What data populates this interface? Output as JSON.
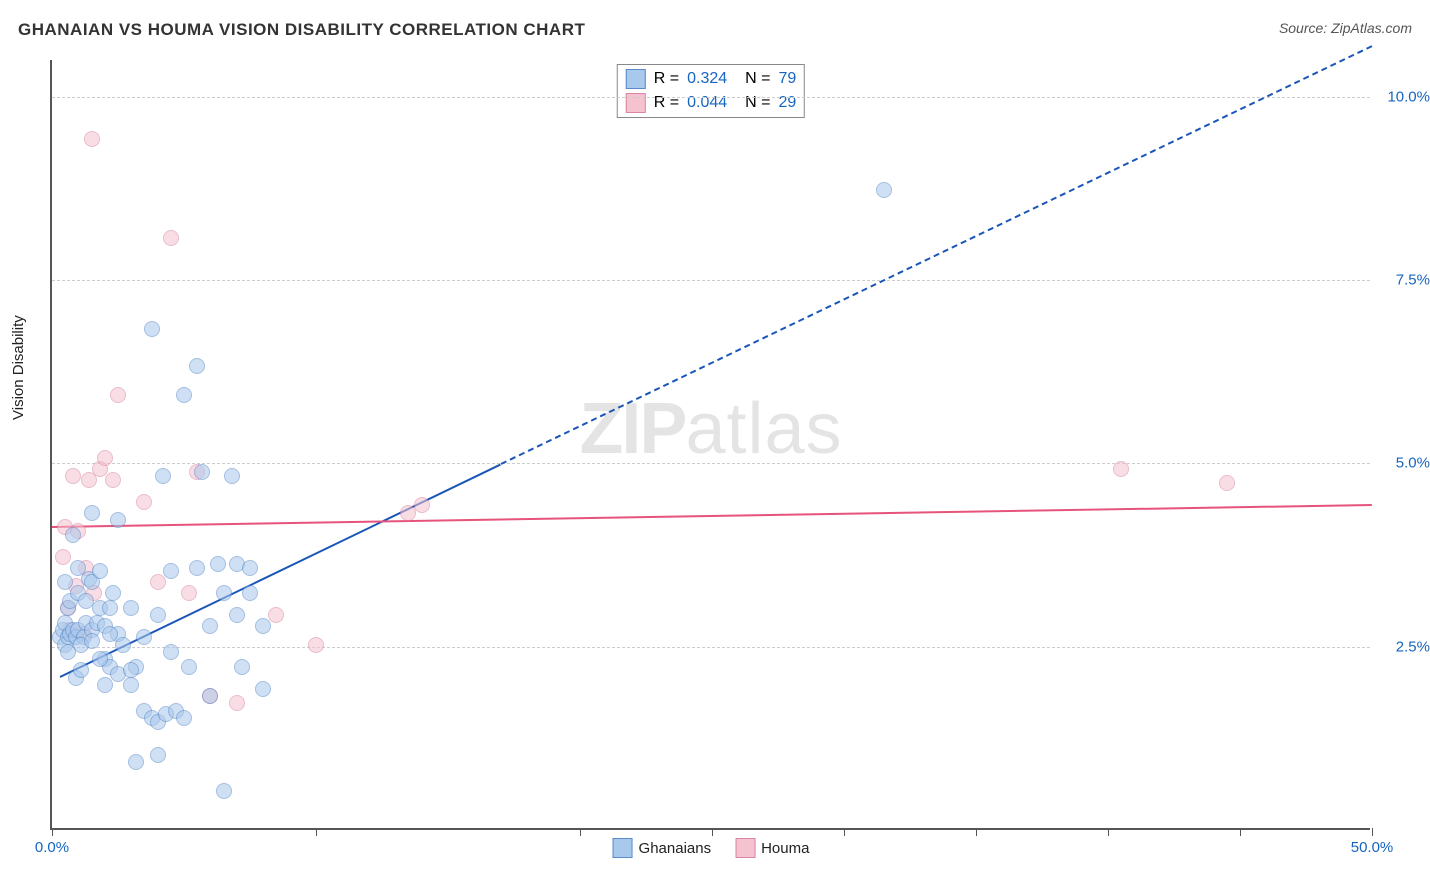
{
  "title": "GHANAIAN VS HOUMA VISION DISABILITY CORRELATION CHART",
  "source_label": "Source: ZipAtlas.com",
  "ylabel": "Vision Disability",
  "watermark_zip": "ZIP",
  "watermark_atlas": "atlas",
  "chart": {
    "type": "scatter",
    "xlim": [
      0,
      50
    ],
    "ylim": [
      0,
      10.5
    ],
    "xtick_positions": [
      0,
      10,
      20,
      25,
      30,
      35,
      40,
      45,
      50
    ],
    "xtick_labels": {
      "0": "0.0%",
      "50": "50.0%"
    },
    "yticks": [
      2.5,
      5.0,
      7.5,
      10.0
    ],
    "ytick_labels": [
      "2.5%",
      "5.0%",
      "7.5%",
      "10.0%"
    ],
    "grid_color": "#cccccc",
    "axis_color": "#555555",
    "background": "#ffffff",
    "point_radius": 7,
    "point_opacity": 0.55,
    "point_stroke_opacity": 0.85
  },
  "series": [
    {
      "name": "Ghanaians",
      "fill": "#a8c8ec",
      "stroke": "#5b8ac9",
      "R": "0.324",
      "N": "79",
      "trend": {
        "color": "#1a56b8",
        "width": 2.5,
        "solid": {
          "x1": 0.3,
          "y1": 2.1,
          "x2": 17,
          "y2": 5.0
        },
        "dashed": {
          "x1": 17,
          "y1": 5.0,
          "x2": 50,
          "y2": 10.7
        }
      },
      "points": [
        [
          0.3,
          2.6
        ],
        [
          0.4,
          2.7
        ],
        [
          0.5,
          2.5
        ],
        [
          0.5,
          2.8
        ],
        [
          0.6,
          2.6
        ],
        [
          0.7,
          2.65
        ],
        [
          0.6,
          3.0
        ],
        [
          0.8,
          2.7
        ],
        [
          0.9,
          2.6
        ],
        [
          0.7,
          3.1
        ],
        [
          1.0,
          2.7
        ],
        [
          1.2,
          2.6
        ],
        [
          1.0,
          3.2
        ],
        [
          1.3,
          2.8
        ],
        [
          1.5,
          2.7
        ],
        [
          1.5,
          4.3
        ],
        [
          1.1,
          2.5
        ],
        [
          1.4,
          3.4
        ],
        [
          1.7,
          2.8
        ],
        [
          1.8,
          3.0
        ],
        [
          2.0,
          2.75
        ],
        [
          2.0,
          2.3
        ],
        [
          2.2,
          2.2
        ],
        [
          2.3,
          3.2
        ],
        [
          2.5,
          2.1
        ],
        [
          2.5,
          2.65
        ],
        [
          2.7,
          2.5
        ],
        [
          3.0,
          3.0
        ],
        [
          3.0,
          1.95
        ],
        [
          3.2,
          2.2
        ],
        [
          3.5,
          2.6
        ],
        [
          3.5,
          1.6
        ],
        [
          3.8,
          6.8
        ],
        [
          3.8,
          1.5
        ],
        [
          4.0,
          2.9
        ],
        [
          4.0,
          1.45
        ],
        [
          4.2,
          4.8
        ],
        [
          4.3,
          1.55
        ],
        [
          4.5,
          3.5
        ],
        [
          4.7,
          1.6
        ],
        [
          5.0,
          5.9
        ],
        [
          5.0,
          1.5
        ],
        [
          5.2,
          2.2
        ],
        [
          5.5,
          6.3
        ],
        [
          5.5,
          3.55
        ],
        [
          5.7,
          4.85
        ],
        [
          6.0,
          2.75
        ],
        [
          6.0,
          1.8
        ],
        [
          6.3,
          3.6
        ],
        [
          6.5,
          3.2
        ],
        [
          6.5,
          0.5
        ],
        [
          6.8,
          4.8
        ],
        [
          7.0,
          2.9
        ],
        [
          7.0,
          3.6
        ],
        [
          7.2,
          2.2
        ],
        [
          7.5,
          3.2
        ],
        [
          7.5,
          3.55
        ],
        [
          8.0,
          2.75
        ],
        [
          8.0,
          1.9
        ],
        [
          3.0,
          2.15
        ],
        [
          2.0,
          1.95
        ],
        [
          4.0,
          1.0
        ],
        [
          3.2,
          0.9
        ],
        [
          4.5,
          2.4
        ],
        [
          0.8,
          4.0
        ],
        [
          1.0,
          3.55
        ],
        [
          1.3,
          3.1
        ],
        [
          1.5,
          3.35
        ],
        [
          1.8,
          3.5
        ],
        [
          1.8,
          2.3
        ],
        [
          2.2,
          3.0
        ],
        [
          2.2,
          2.65
        ],
        [
          2.5,
          4.2
        ],
        [
          0.5,
          3.35
        ],
        [
          0.6,
          2.4
        ],
        [
          0.9,
          2.05
        ],
        [
          1.1,
          2.15
        ],
        [
          1.5,
          2.55
        ],
        [
          31.5,
          8.7
        ]
      ]
    },
    {
      "name": "Houma",
      "fill": "#f5c2cf",
      "stroke": "#d986a1",
      "R": "0.044",
      "N": "29",
      "trend": {
        "color": "#e6537b",
        "width": 2.5,
        "solid": {
          "x1": 0,
          "y1": 4.15,
          "x2": 50,
          "y2": 4.45
        }
      },
      "points": [
        [
          0.5,
          4.1
        ],
        [
          0.6,
          3.0
        ],
        [
          0.7,
          2.7
        ],
        [
          0.8,
          4.8
        ],
        [
          0.9,
          3.3
        ],
        [
          1.0,
          4.05
        ],
        [
          1.2,
          2.65
        ],
        [
          1.3,
          3.55
        ],
        [
          1.4,
          4.75
        ],
        [
          1.5,
          9.4
        ],
        [
          1.6,
          3.2
        ],
        [
          1.8,
          4.9
        ],
        [
          2.0,
          5.05
        ],
        [
          2.3,
          4.75
        ],
        [
          2.5,
          5.9
        ],
        [
          3.5,
          4.45
        ],
        [
          4.0,
          3.35
        ],
        [
          4.5,
          8.05
        ],
        [
          5.2,
          3.2
        ],
        [
          5.5,
          4.85
        ],
        [
          6.0,
          1.8
        ],
        [
          7.0,
          1.7
        ],
        [
          8.5,
          2.9
        ],
        [
          10.0,
          2.5
        ],
        [
          13.5,
          4.3
        ],
        [
          14.0,
          4.4
        ],
        [
          40.5,
          4.9
        ],
        [
          44.5,
          4.7
        ],
        [
          0.4,
          3.7
        ]
      ]
    }
  ],
  "stats_labels": {
    "R": "R =",
    "N": "N ="
  },
  "legend_value_color": "#1565c0",
  "legend_key_color": "#333333"
}
